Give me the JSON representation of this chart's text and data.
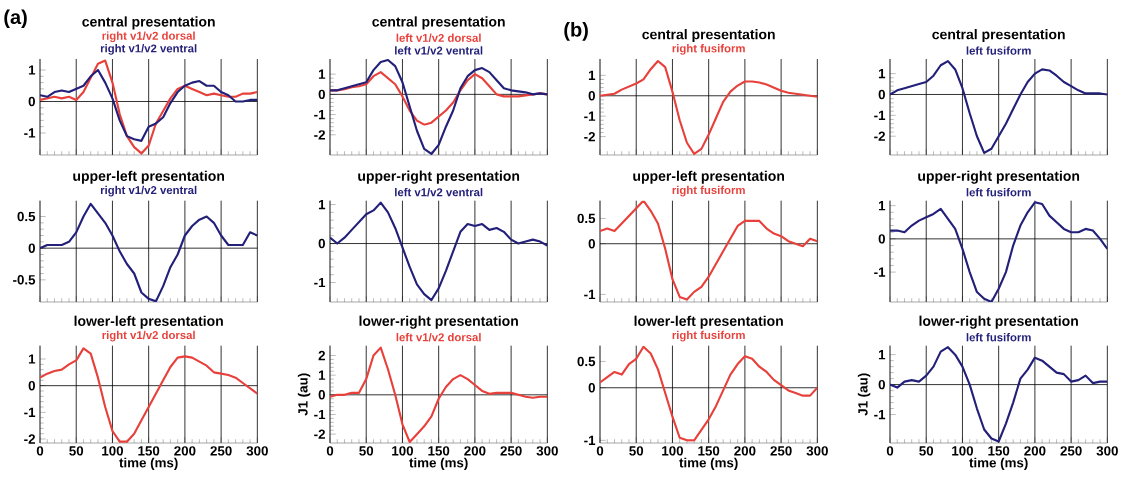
{
  "chart_data": [
    {
      "type": "line",
      "title": "central presentation",
      "annotations": [
        "(a)"
      ],
      "x": [
        0,
        10,
        20,
        30,
        40,
        50,
        60,
        70,
        80,
        90,
        100,
        110,
        120,
        130,
        140,
        150,
        160,
        170,
        180,
        190,
        200,
        210,
        220,
        230,
        240,
        250,
        260,
        270,
        280,
        290,
        300
      ],
      "xlim": [
        0,
        300
      ],
      "xticks": [
        0,
        50,
        100,
        150,
        200,
        250,
        300
      ],
      "ylim": [
        -1.7,
        1.35
      ],
      "yticks": [
        -1,
        0,
        1
      ],
      "grid": "x",
      "tick_labels": "y",
      "ref_lines": [
        {
          "axis": "y",
          "value": 0,
          "color": "#000000"
        }
      ],
      "series": [
        {
          "name": "right v1/v2 dorsal",
          "color": "#e8403a",
          "values": [
            0.05,
            0.1,
            0.15,
            0.1,
            0.15,
            0.05,
            0.3,
            0.75,
            1.2,
            1.3,
            0.6,
            -0.4,
            -1.1,
            -1.45,
            -1.65,
            -1.4,
            -0.7,
            -0.3,
            0.1,
            0.4,
            0.5,
            0.4,
            0.3,
            0.2,
            0.25,
            0.2,
            0.15,
            0.15,
            0.25,
            0.25,
            0.3
          ]
        },
        {
          "name": "right v1/v2 ventral",
          "color": "#23207a",
          "values": [
            0.2,
            0.15,
            0.3,
            0.35,
            0.3,
            0.4,
            0.5,
            0.8,
            1.0,
            0.6,
            0.1,
            -0.6,
            -1.1,
            -1.2,
            -1.25,
            -0.8,
            -0.7,
            -0.5,
            -0.05,
            0.3,
            0.5,
            0.6,
            0.65,
            0.5,
            0.5,
            0.3,
            0.2,
            0.0,
            0.0,
            0.05,
            0.05
          ]
        }
      ]
    },
    {
      "type": "line",
      "title": "central presentation",
      "x": [
        0,
        10,
        20,
        30,
        40,
        50,
        60,
        70,
        80,
        90,
        100,
        110,
        120,
        130,
        140,
        150,
        160,
        170,
        180,
        190,
        200,
        210,
        220,
        230,
        240,
        250,
        260,
        270,
        280,
        290,
        300
      ],
      "xlim": [
        0,
        300
      ],
      "xticks": [
        0,
        50,
        100,
        150,
        200,
        250,
        300
      ],
      "ylim": [
        -3.0,
        1.75
      ],
      "yticks": [
        -2,
        -1,
        0,
        1
      ],
      "grid": "x",
      "tick_labels": "y",
      "ref_lines": [
        {
          "axis": "y",
          "value": 0,
          "color": "#000000"
        }
      ],
      "series": [
        {
          "name": "left v1/v2 dorsal",
          "color": "#e8403a",
          "values": [
            0.2,
            0.2,
            0.25,
            0.35,
            0.4,
            0.5,
            0.9,
            1.1,
            0.8,
            0.5,
            -0.1,
            -0.8,
            -1.3,
            -1.5,
            -1.4,
            -1.1,
            -0.8,
            -0.4,
            0.2,
            0.7,
            1.0,
            0.8,
            0.4,
            0.0,
            -0.1,
            -0.1,
            -0.1,
            -0.05,
            0.0,
            0.05,
            0.0
          ]
        },
        {
          "name": "left v1/v2 ventral",
          "color": "#23207a",
          "values": [
            0.2,
            0.2,
            0.3,
            0.4,
            0.5,
            0.6,
            1.2,
            1.6,
            1.7,
            1.4,
            0.6,
            -0.6,
            -1.8,
            -2.7,
            -2.95,
            -2.5,
            -1.6,
            -0.8,
            0.3,
            0.9,
            1.2,
            1.3,
            1.1,
            0.7,
            0.3,
            0.2,
            0.15,
            0.1,
            0.0,
            0.05,
            0.0
          ]
        }
      ]
    },
    {
      "type": "line",
      "title": "central presentation",
      "annotations": [
        "(b)"
      ],
      "x": [
        0,
        10,
        20,
        30,
        40,
        50,
        60,
        70,
        80,
        90,
        100,
        110,
        120,
        130,
        140,
        150,
        160,
        170,
        180,
        190,
        200,
        210,
        220,
        230,
        240,
        250,
        260,
        270,
        280,
        290,
        300
      ],
      "xlim": [
        0,
        300
      ],
      "xticks": [
        0,
        50,
        100,
        150,
        200,
        250,
        300
      ],
      "ylim": [
        -2.9,
        1.8
      ],
      "yticks": [
        -2,
        -1,
        0,
        1
      ],
      "grid": "x",
      "tick_labels": "y",
      "ref_lines": [
        {
          "axis": "y",
          "value": 0,
          "color": "#000000"
        }
      ],
      "series": [
        {
          "name": "right fusiform",
          "color": "#e8403a",
          "values": [
            0.0,
            0.05,
            0.1,
            0.3,
            0.45,
            0.6,
            0.8,
            1.3,
            1.7,
            1.4,
            0.2,
            -1.2,
            -2.3,
            -2.85,
            -2.6,
            -1.9,
            -1.1,
            -0.3,
            0.2,
            0.5,
            0.7,
            0.7,
            0.65,
            0.55,
            0.4,
            0.25,
            0.15,
            0.1,
            0.05,
            0.0,
            -0.05
          ]
        }
      ]
    },
    {
      "type": "line",
      "title": "central presentation",
      "x": [
        0,
        10,
        20,
        30,
        40,
        50,
        60,
        70,
        80,
        90,
        100,
        110,
        120,
        130,
        140,
        150,
        160,
        170,
        180,
        190,
        200,
        210,
        220,
        230,
        240,
        250,
        260,
        270,
        280,
        290,
        300
      ],
      "xlim": [
        0,
        300
      ],
      "xticks": [
        0,
        50,
        100,
        150,
        200,
        250,
        300
      ],
      "ylim": [
        -2.9,
        1.7
      ],
      "yticks": [
        -2,
        -1,
        0,
        1
      ],
      "grid": "x",
      "tick_labels": "y",
      "ref_lines": [
        {
          "axis": "y",
          "value": 0,
          "color": "#000000"
        }
      ],
      "series": [
        {
          "name": "left fusiform",
          "color": "#23207a",
          "values": [
            0.0,
            0.2,
            0.3,
            0.4,
            0.5,
            0.6,
            0.9,
            1.4,
            1.6,
            1.2,
            0.3,
            -0.9,
            -2.0,
            -2.8,
            -2.6,
            -2.0,
            -1.4,
            -0.7,
            0.0,
            0.6,
            1.0,
            1.2,
            1.15,
            0.9,
            0.6,
            0.4,
            0.2,
            0.05,
            0.05,
            0.05,
            0.0
          ]
        }
      ]
    },
    {
      "type": "line",
      "title": "upper-left presentation",
      "x": [
        0,
        10,
        20,
        30,
        40,
        50,
        60,
        70,
        80,
        90,
        100,
        110,
        120,
        130,
        140,
        150,
        160,
        170,
        180,
        190,
        200,
        210,
        220,
        230,
        240,
        250,
        260,
        270,
        280,
        290,
        300
      ],
      "xlim": [
        0,
        300
      ],
      "xticks": [
        0,
        50,
        100,
        150,
        200,
        250,
        300
      ],
      "ylim": [
        -0.85,
        0.75
      ],
      "yticks": [
        -0.5,
        0,
        0.5
      ],
      "grid": "x",
      "tick_labels": "y",
      "ref_lines": [
        {
          "axis": "y",
          "value": 0,
          "color": "#000000"
        }
      ],
      "series": [
        {
          "name": "right v1/v2 ventral",
          "color": "#23207a",
          "values": [
            0.0,
            0.05,
            0.05,
            0.05,
            0.1,
            0.25,
            0.5,
            0.7,
            0.55,
            0.4,
            0.2,
            -0.05,
            -0.25,
            -0.4,
            -0.7,
            -0.8,
            -0.84,
            -0.6,
            -0.3,
            -0.1,
            0.2,
            0.35,
            0.45,
            0.5,
            0.4,
            0.2,
            0.05,
            0.05,
            0.05,
            0.25,
            0.2
          ]
        }
      ]
    },
    {
      "type": "line",
      "title": "upper-right presentation",
      "x": [
        0,
        10,
        20,
        30,
        40,
        50,
        60,
        70,
        80,
        90,
        100,
        110,
        120,
        130,
        140,
        150,
        160,
        170,
        180,
        190,
        200,
        210,
        220,
        230,
        240,
        250,
        260,
        270,
        280,
        290,
        300
      ],
      "xlim": [
        0,
        300
      ],
      "xticks": [
        0,
        50,
        100,
        150,
        200,
        250,
        300
      ],
      "ylim": [
        -1.5,
        1.1
      ],
      "yticks": [
        -1,
        0,
        1
      ],
      "grid": "x",
      "tick_labels": "y",
      "ref_lines": [
        {
          "axis": "y",
          "value": 0,
          "color": "#000000"
        }
      ],
      "series": [
        {
          "name": "left v1/v2 ventral",
          "color": "#23207a",
          "values": [
            0.15,
            0.0,
            0.15,
            0.35,
            0.55,
            0.75,
            0.85,
            1.05,
            0.8,
            0.4,
            -0.1,
            -0.6,
            -1.05,
            -1.3,
            -1.45,
            -1.15,
            -0.7,
            -0.2,
            0.3,
            0.5,
            0.45,
            0.5,
            0.35,
            0.4,
            0.3,
            0.1,
            0.0,
            0.05,
            0.1,
            0.05,
            -0.05
          ]
        }
      ]
    },
    {
      "type": "line",
      "title": "upper-left presentation",
      "x": [
        0,
        10,
        20,
        30,
        40,
        50,
        60,
        70,
        80,
        90,
        100,
        110,
        120,
        130,
        140,
        150,
        160,
        170,
        180,
        190,
        200,
        210,
        220,
        230,
        240,
        250,
        260,
        270,
        280,
        290,
        300
      ],
      "xlim": [
        0,
        300
      ],
      "xticks": [
        0,
        50,
        100,
        150,
        200,
        250,
        300
      ],
      "ylim": [
        -1.15,
        0.85
      ],
      "yticks": [
        -1,
        0,
        0.5
      ],
      "grid": "x",
      "tick_labels": "y",
      "ref_lines": [
        {
          "axis": "y",
          "value": 0,
          "color": "#000000"
        }
      ],
      "series": [
        {
          "name": "right fusiform",
          "color": "#e8403a",
          "values": [
            0.25,
            0.3,
            0.25,
            0.4,
            0.55,
            0.7,
            0.85,
            0.65,
            0.4,
            -0.1,
            -0.7,
            -1.05,
            -1.1,
            -0.95,
            -0.85,
            -0.65,
            -0.4,
            -0.15,
            0.1,
            0.35,
            0.45,
            0.45,
            0.45,
            0.3,
            0.2,
            0.15,
            0.05,
            0.0,
            -0.05,
            0.1,
            0.05
          ]
        }
      ]
    },
    {
      "type": "line",
      "title": "upper-right presentation",
      "x": [
        0,
        10,
        20,
        30,
        40,
        50,
        60,
        70,
        80,
        90,
        100,
        110,
        120,
        130,
        140,
        150,
        160,
        170,
        180,
        190,
        200,
        210,
        220,
        230,
        240,
        250,
        260,
        270,
        280,
        290,
        300
      ],
      "xlim": [
        0,
        300
      ],
      "xticks": [
        0,
        50,
        100,
        150,
        200,
        250,
        300
      ],
      "ylim": [
        -1.9,
        1.15
      ],
      "yticks": [
        -1,
        0,
        1
      ],
      "grid": "x",
      "tick_labels": "y",
      "ref_lines": [
        {
          "axis": "y",
          "value": 0,
          "color": "#000000"
        }
      ],
      "series": [
        {
          "name": "left fusiform",
          "color": "#23207a",
          "values": [
            0.25,
            0.25,
            0.2,
            0.4,
            0.55,
            0.65,
            0.75,
            0.9,
            0.6,
            0.3,
            -0.3,
            -1.0,
            -1.6,
            -1.8,
            -1.9,
            -1.5,
            -1.0,
            -0.2,
            0.4,
            0.8,
            1.1,
            1.05,
            0.7,
            0.5,
            0.3,
            0.2,
            0.2,
            0.3,
            0.25,
            0.0,
            -0.3
          ]
        }
      ]
    },
    {
      "type": "line",
      "title": "lower-left presentation",
      "xlabel": "time (ms)",
      "x": [
        0,
        10,
        20,
        30,
        40,
        50,
        60,
        70,
        80,
        90,
        100,
        110,
        120,
        130,
        140,
        150,
        160,
        170,
        180,
        190,
        200,
        210,
        220,
        230,
        240,
        250,
        260,
        270,
        280,
        290,
        300
      ],
      "xlim": [
        0,
        300
      ],
      "xticks": [
        0,
        50,
        100,
        150,
        200,
        250,
        300
      ],
      "ylim": [
        -2.15,
        1.5
      ],
      "yticks": [
        -2,
        -1,
        0,
        1
      ],
      "grid": "x",
      "ref_lines": [
        {
          "axis": "y",
          "value": 0,
          "color": "#000000"
        }
      ],
      "series": [
        {
          "name": "right v1/v2 dorsal",
          "color": "#e8403a",
          "values": [
            0.3,
            0.45,
            0.55,
            0.6,
            0.8,
            0.95,
            1.4,
            1.2,
            0.3,
            -0.8,
            -1.7,
            -2.1,
            -2.1,
            -1.8,
            -1.3,
            -0.8,
            -0.3,
            0.2,
            0.7,
            1.05,
            1.1,
            1.05,
            0.9,
            0.75,
            0.5,
            0.45,
            0.4,
            0.3,
            0.1,
            -0.1,
            -0.3
          ]
        }
      ]
    },
    {
      "type": "line",
      "title": "lower-right presentation",
      "xlabel": "time (ms)",
      "ylabel": "J1 (au)",
      "x": [
        0,
        10,
        20,
        30,
        40,
        50,
        60,
        70,
        80,
        90,
        100,
        110,
        120,
        130,
        140,
        150,
        160,
        170,
        180,
        190,
        200,
        210,
        220,
        230,
        240,
        250,
        260,
        270,
        280,
        290,
        300
      ],
      "xlim": [
        0,
        300
      ],
      "xticks": [
        0,
        50,
        100,
        150,
        200,
        250,
        300
      ],
      "ylim": [
        -2.45,
        2.5
      ],
      "yticks": [
        -2,
        -1,
        0,
        1,
        2
      ],
      "grid": "x",
      "ref_lines": [
        {
          "axis": "y",
          "value": 0,
          "color": "#000000"
        }
      ],
      "series": [
        {
          "name": "left v1/v2 dorsal",
          "color": "#e8403a",
          "values": [
            -0.1,
            0.0,
            0.0,
            0.1,
            0.1,
            0.8,
            2.0,
            2.4,
            1.3,
            0.0,
            -1.5,
            -2.4,
            -2.0,
            -1.6,
            -1.1,
            -0.2,
            0.4,
            0.8,
            1.0,
            0.8,
            0.5,
            0.2,
            0.05,
            0.1,
            0.1,
            0.1,
            0.0,
            -0.1,
            -0.15,
            -0.1,
            -0.1
          ]
        }
      ]
    },
    {
      "type": "line",
      "title": "lower-left presentation",
      "xlabel": "time (ms)",
      "x": [
        0,
        10,
        20,
        30,
        40,
        50,
        60,
        70,
        80,
        90,
        100,
        110,
        120,
        130,
        140,
        150,
        160,
        170,
        180,
        190,
        200,
        210,
        220,
        230,
        240,
        250,
        260,
        270,
        280,
        290,
        300
      ],
      "xlim": [
        0,
        300
      ],
      "xticks": [
        0,
        50,
        100,
        150,
        200,
        250,
        300
      ],
      "ylim": [
        -1.05,
        0.8
      ],
      "yticks": [
        -1,
        0,
        0.5
      ],
      "grid": "x",
      "ref_lines": [
        {
          "axis": "y",
          "value": 0,
          "color": "#000000"
        }
      ],
      "series": [
        {
          "name": "right fusiform",
          "color": "#e8403a",
          "values": [
            0.1,
            0.2,
            0.3,
            0.25,
            0.45,
            0.55,
            0.78,
            0.65,
            0.35,
            -0.1,
            -0.55,
            -0.95,
            -1.0,
            -1.0,
            -0.8,
            -0.6,
            -0.35,
            -0.05,
            0.25,
            0.45,
            0.6,
            0.55,
            0.4,
            0.3,
            0.15,
            0.05,
            -0.05,
            -0.1,
            -0.15,
            -0.15,
            0.0
          ]
        }
      ]
    },
    {
      "type": "line",
      "title": "lower-right presentation",
      "xlabel": "time (ms)",
      "ylabel": "J1 (au)",
      "x": [
        0,
        10,
        20,
        30,
        40,
        50,
        60,
        70,
        80,
        90,
        100,
        110,
        120,
        130,
        140,
        150,
        160,
        170,
        180,
        190,
        200,
        210,
        220,
        230,
        240,
        250,
        260,
        270,
        280,
        290,
        300
      ],
      "xlim": [
        0,
        300
      ],
      "xticks": [
        0,
        50,
        100,
        150,
        200,
        250,
        300
      ],
      "ylim": [
        -1.95,
        1.3
      ],
      "yticks": [
        -1,
        0,
        1
      ],
      "grid": "x",
      "ref_lines": [
        {
          "axis": "y",
          "value": 0,
          "color": "#000000"
        }
      ],
      "series": [
        {
          "name": "left fusiform",
          "color": "#23207a",
          "values": [
            0.0,
            -0.1,
            0.1,
            0.15,
            0.1,
            0.3,
            0.6,
            1.1,
            1.25,
            1.0,
            0.6,
            0.0,
            -0.8,
            -1.5,
            -1.8,
            -1.9,
            -1.3,
            -0.6,
            0.2,
            0.5,
            0.9,
            0.8,
            0.6,
            0.4,
            0.35,
            0.1,
            0.15,
            0.3,
            0.05,
            0.1,
            0.1
          ]
        }
      ]
    }
  ]
}
